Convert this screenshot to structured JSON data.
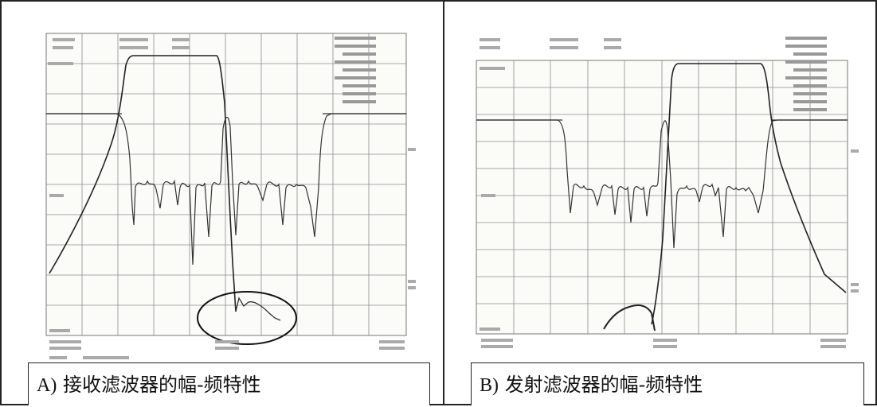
{
  "panel_a": {
    "caption_prefix": "A)",
    "caption_title": "接收滤波器的幅-频特性"
  },
  "panel_b": {
    "caption_prefix": "B)",
    "caption_title": "发射滤波器的幅-频特性"
  }
}
